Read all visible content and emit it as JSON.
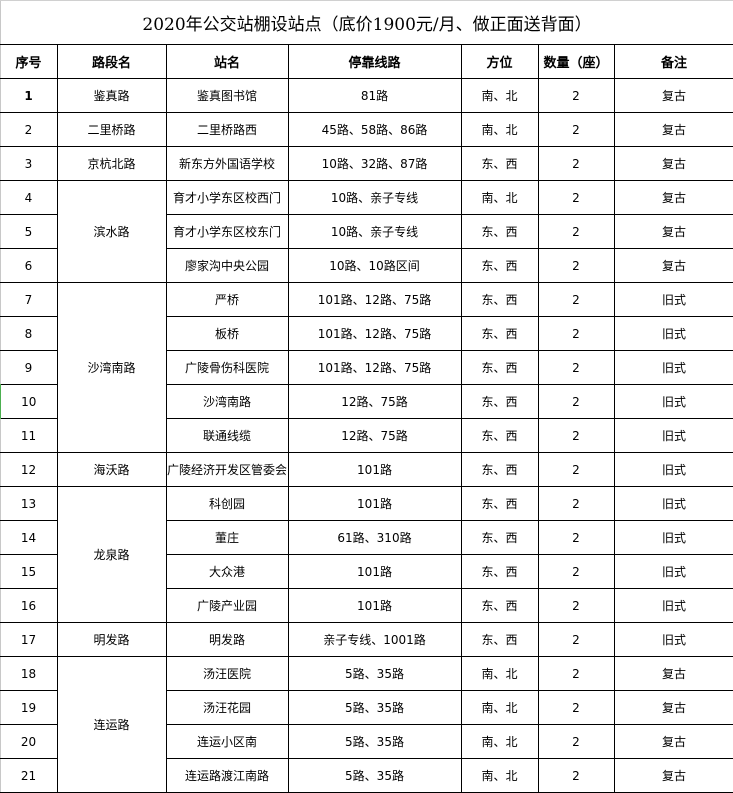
{
  "title": "2020年公交站棚设站点（底价1900元/月、做正面送背面）",
  "headers": [
    "序号",
    "路段名",
    "站名",
    "停靠线路",
    "方位",
    "数量（座）",
    "备注"
  ],
  "rows": [
    {
      "no": "1",
      "road": "鉴真路",
      "span": 1,
      "station": "鉴真图书馆",
      "lines": "81路",
      "dir": "南、北",
      "count": "2",
      "note": "复古"
    },
    {
      "no": "2",
      "road": "二里桥路",
      "span": 1,
      "station": "二里桥路西",
      "lines": "45路、58路、86路",
      "dir": "南、北",
      "count": "2",
      "note": "复古"
    },
    {
      "no": "3",
      "road": "京杭北路",
      "span": 1,
      "station": "新东方外国语学校",
      "lines": "10路、32路、87路",
      "dir": "东、西",
      "count": "2",
      "note": "复古"
    },
    {
      "no": "4",
      "road": "滨水路",
      "span": 3,
      "station": "育才小学东区校西门",
      "lines": "10路、亲子专线",
      "dir": "南、北",
      "count": "2",
      "note": "复古"
    },
    {
      "no": "5",
      "road": null,
      "station": "育才小学东区校东门",
      "lines": "10路、亲子专线",
      "dir": "东、西",
      "count": "2",
      "note": "复古"
    },
    {
      "no": "6",
      "road": null,
      "station": "廖家沟中央公园",
      "lines": "10路、10路区间",
      "dir": "东、西",
      "count": "2",
      "note": "复古"
    },
    {
      "no": "7",
      "road": "沙湾南路",
      "span": 5,
      "station": "严桥",
      "lines": "101路、12路、75路",
      "dir": "东、西",
      "count": "2",
      "note": "旧式"
    },
    {
      "no": "8",
      "road": null,
      "station": "板桥",
      "lines": "101路、12路、75路",
      "dir": "东、西",
      "count": "2",
      "note": "旧式"
    },
    {
      "no": "9",
      "road": null,
      "station": "广陵骨伤科医院",
      "lines": "101路、12路、75路",
      "dir": "东、西",
      "count": "2",
      "note": "旧式"
    },
    {
      "no": "10",
      "road": null,
      "station": "沙湾南路",
      "lines": "12路、75路",
      "dir": "东、西",
      "count": "2",
      "note": "旧式"
    },
    {
      "no": "11",
      "road": null,
      "station": "联通线缆",
      "lines": "12路、75路",
      "dir": "东、西",
      "count": "2",
      "note": "旧式"
    },
    {
      "no": "12",
      "road": "海沃路",
      "span": 1,
      "station": "广陵经济开发区管委会",
      "lines": "101路",
      "dir": "东、西",
      "count": "2",
      "note": "旧式"
    },
    {
      "no": "13",
      "road": "龙泉路",
      "span": 4,
      "station": "科创园",
      "lines": "101路",
      "dir": "东、西",
      "count": "2",
      "note": "旧式"
    },
    {
      "no": "14",
      "road": null,
      "station": "董庄",
      "lines": "61路、310路",
      "dir": "东、西",
      "count": "2",
      "note": "旧式"
    },
    {
      "no": "15",
      "road": null,
      "station": "大众港",
      "lines": "101路",
      "dir": "东、西",
      "count": "2",
      "note": "旧式"
    },
    {
      "no": "16",
      "road": null,
      "station": "广陵产业园",
      "lines": "101路",
      "dir": "东、西",
      "count": "2",
      "note": "旧式"
    },
    {
      "no": "17",
      "road": "明发路",
      "span": 1,
      "station": "明发路",
      "lines": "亲子专线、1001路",
      "dir": "东、西",
      "count": "2",
      "note": "旧式"
    },
    {
      "no": "18",
      "road": "连运路",
      "span": 4,
      "station": "汤汪医院",
      "lines": "5路、35路",
      "dir": "南、北",
      "count": "2",
      "note": "复古"
    },
    {
      "no": "19",
      "road": null,
      "station": "汤汪花园",
      "lines": "5路、35路",
      "dir": "南、北",
      "count": "2",
      "note": "复古"
    },
    {
      "no": "20",
      "road": null,
      "station": "连运小区南",
      "lines": "5路、35路",
      "dir": "南、北",
      "count": "2",
      "note": "复古"
    },
    {
      "no": "21",
      "road": null,
      "station": "连运路渡江南路",
      "lines": "5路、35路",
      "dir": "南、北",
      "count": "2",
      "note": "复古"
    }
  ]
}
